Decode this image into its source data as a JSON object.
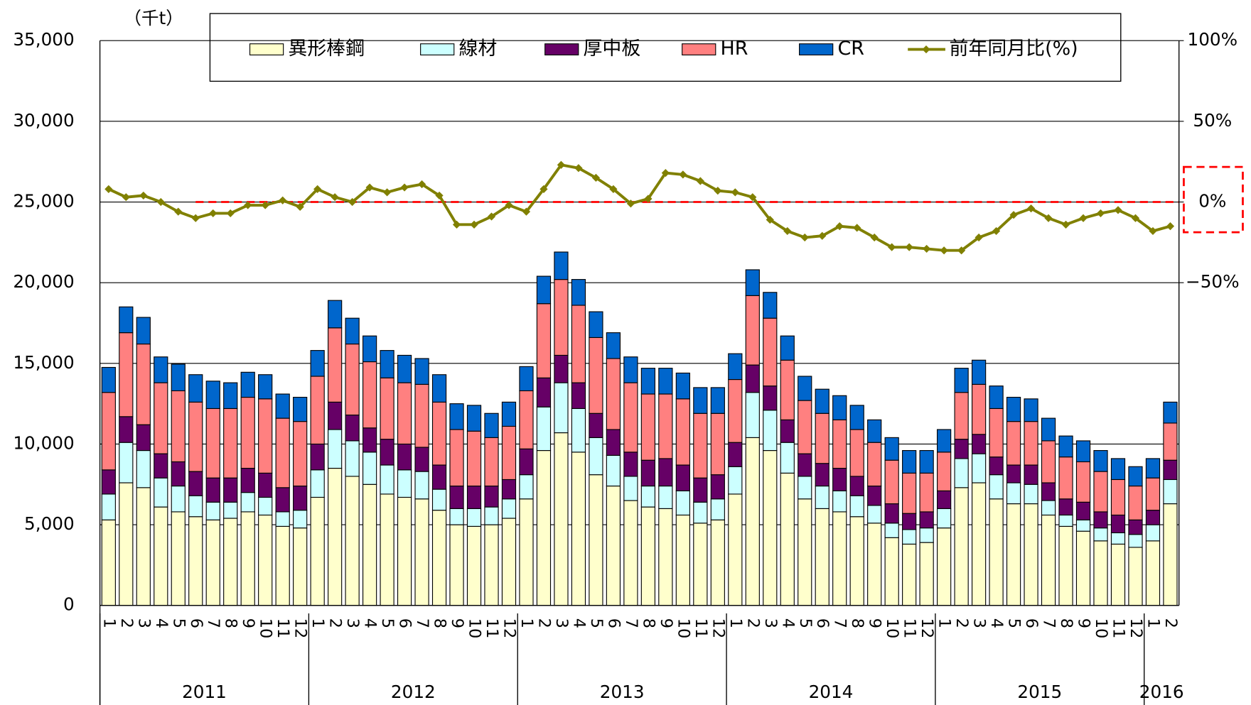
{
  "chart_data": {
    "type": "stacked-bar-line",
    "unit_label": "（千t）",
    "groups": [
      {
        "name": "2011",
        "categories": [
          "1",
          "2",
          "3",
          "4",
          "5",
          "6",
          "7",
          "8",
          "9",
          "10",
          "11",
          "12"
        ]
      },
      {
        "name": "2012",
        "categories": [
          "1",
          "2",
          "3",
          "4",
          "5",
          "6",
          "7",
          "8",
          "9",
          "10",
          "11",
          "12"
        ]
      },
      {
        "name": "2013",
        "categories": [
          "1",
          "2",
          "3",
          "4",
          "5",
          "6",
          "7",
          "8",
          "9",
          "10",
          "11",
          "12"
        ]
      },
      {
        "name": "2014",
        "categories": [
          "1",
          "2",
          "3",
          "4",
          "5",
          "6",
          "7",
          "8",
          "9",
          "10",
          "11",
          "12"
        ]
      },
      {
        "name": "2015",
        "categories": [
          "1",
          "2",
          "3",
          "4",
          "5",
          "6",
          "7",
          "8",
          "9",
          "10",
          "11",
          "12"
        ]
      },
      {
        "name": "2016",
        "categories": [
          "1",
          "2"
        ]
      }
    ],
    "ylim": [
      0,
      35000
    ],
    "yticks": [
      0,
      {
        "value": 5000,
        "label": "5,000"
      },
      {
        "value": 10000,
        "label": "10,000"
      },
      {
        "value": 15000,
        "label": "15,000"
      },
      {
        "value": 20000,
        "label": "20,000"
      },
      {
        "value": 25000,
        "label": "25,000"
      },
      {
        "value": 30000,
        "label": "30,000"
      },
      {
        "value": 35000,
        "label": "35,000"
      }
    ],
    "y2lim": [
      -250,
      100
    ],
    "y2ticks": [
      {
        "value": -50,
        "label": "−50%"
      },
      {
        "value": 0,
        "label": "0%"
      },
      {
        "value": 50,
        "label": "50%"
      },
      {
        "value": 100,
        "label": "100%"
      }
    ],
    "y2_reference": 0,
    "series": [
      {
        "name": "異形棒鋼",
        "color": "#ffffcc",
        "values": [
          5300,
          7600,
          7300,
          6100,
          5800,
          5500,
          5300,
          5400,
          5800,
          5600,
          4900,
          4800,
          6700,
          8500,
          8000,
          7500,
          6900,
          6700,
          6600,
          5900,
          5000,
          4900,
          5000,
          5400,
          6600,
          9600,
          10700,
          9500,
          8100,
          7400,
          6500,
          6100,
          6000,
          5600,
          5100,
          5300,
          6900,
          10400,
          9600,
          8200,
          6600,
          6000,
          5800,
          5500,
          5100,
          4200,
          3800,
          3900,
          4800,
          7300,
          7600,
          6600,
          6300,
          6300,
          5600,
          4900,
          4600,
          4000,
          3800,
          3600,
          4000,
          6300
        ]
      },
      {
        "name": "線材",
        "color": "#ccffff",
        "values": [
          1600,
          2500,
          2300,
          1800,
          1600,
          1300,
          1100,
          1000,
          1200,
          1100,
          900,
          1100,
          1700,
          2400,
          2200,
          2000,
          1800,
          1700,
          1700,
          1300,
          1000,
          1100,
          1100,
          1200,
          1500,
          2700,
          3100,
          2700,
          2300,
          1900,
          1500,
          1300,
          1400,
          1500,
          1300,
          1300,
          1700,
          2800,
          2500,
          1900,
          1400,
          1400,
          1300,
          1300,
          1100,
          900,
          900,
          900,
          1200,
          1800,
          1800,
          1500,
          1300,
          1200,
          900,
          700,
          700,
          800,
          700,
          800,
          1000,
          1500
        ]
      },
      {
        "name": "厚中板",
        "color": "#660066",
        "values": [
          1500,
          1600,
          1600,
          1500,
          1500,
          1500,
          1500,
          1500,
          1500,
          1500,
          1500,
          1500,
          1600,
          1700,
          1600,
          1500,
          1600,
          1600,
          1500,
          1500,
          1400,
          1400,
          1300,
          1200,
          1600,
          1800,
          1700,
          1600,
          1500,
          1600,
          1500,
          1600,
          1700,
          1600,
          1500,
          1500,
          1500,
          1700,
          1500,
          1400,
          1400,
          1400,
          1400,
          1200,
          1200,
          1200,
          1000,
          1000,
          1100,
          1200,
          1200,
          1100,
          1100,
          1200,
          1100,
          1000,
          1100,
          1000,
          1100,
          900,
          900,
          1200
        ]
      },
      {
        "name": "HR",
        "color": "#ff8080",
        "values": [
          4800,
          5200,
          5000,
          4400,
          4400,
          4300,
          4300,
          4300,
          4400,
          4600,
          4300,
          4000,
          4200,
          4600,
          4400,
          4100,
          3800,
          3800,
          3900,
          3900,
          3500,
          3400,
          3000,
          3300,
          3600,
          4600,
          4700,
          4800,
          4700,
          4400,
          4300,
          4100,
          4000,
          4100,
          4000,
          3800,
          3900,
          4300,
          4200,
          3700,
          3300,
          3100,
          3000,
          2900,
          2700,
          2700,
          2500,
          2400,
          2400,
          2900,
          3100,
          3000,
          2700,
          2700,
          2600,
          2600,
          2500,
          2500,
          2200,
          2100,
          2000,
          2300
        ]
      },
      {
        "name": "CR",
        "color": "#0066cc",
        "values": [
          1550,
          1600,
          1650,
          1600,
          1650,
          1700,
          1700,
          1600,
          1550,
          1500,
          1500,
          1500,
          1600,
          1700,
          1600,
          1600,
          1700,
          1700,
          1600,
          1700,
          1600,
          1600,
          1500,
          1500,
          1500,
          1700,
          1700,
          1600,
          1600,
          1600,
          1600,
          1600,
          1600,
          1600,
          1600,
          1600,
          1600,
          1600,
          1600,
          1500,
          1500,
          1500,
          1500,
          1500,
          1400,
          1400,
          1400,
          1400,
          1400,
          1500,
          1500,
          1400,
          1500,
          1400,
          1400,
          1300,
          1300,
          1300,
          1300,
          1200,
          1200,
          1300
        ]
      },
      {
        "name": "前年同月比(%)",
        "color": "#808000",
        "axis": "y2",
        "values": [
          8,
          3,
          4,
          0,
          -6,
          -10,
          -7,
          -7,
          -2,
          -2,
          1,
          -3,
          8,
          3,
          0,
          9,
          6,
          9,
          11,
          4,
          -14,
          -14,
          -9,
          -2,
          -6,
          8,
          23,
          21,
          15,
          8,
          -1,
          2,
          18,
          17,
          13,
          7,
          6,
          3,
          -11,
          -18,
          -22,
          -21,
          -15,
          -16,
          -22,
          -28,
          -28,
          -29,
          -30,
          -30,
          -22,
          -18,
          -8,
          -4,
          -10,
          -14,
          -10,
          -7,
          -5,
          -10,
          -18,
          -15
        ]
      }
    ]
  }
}
